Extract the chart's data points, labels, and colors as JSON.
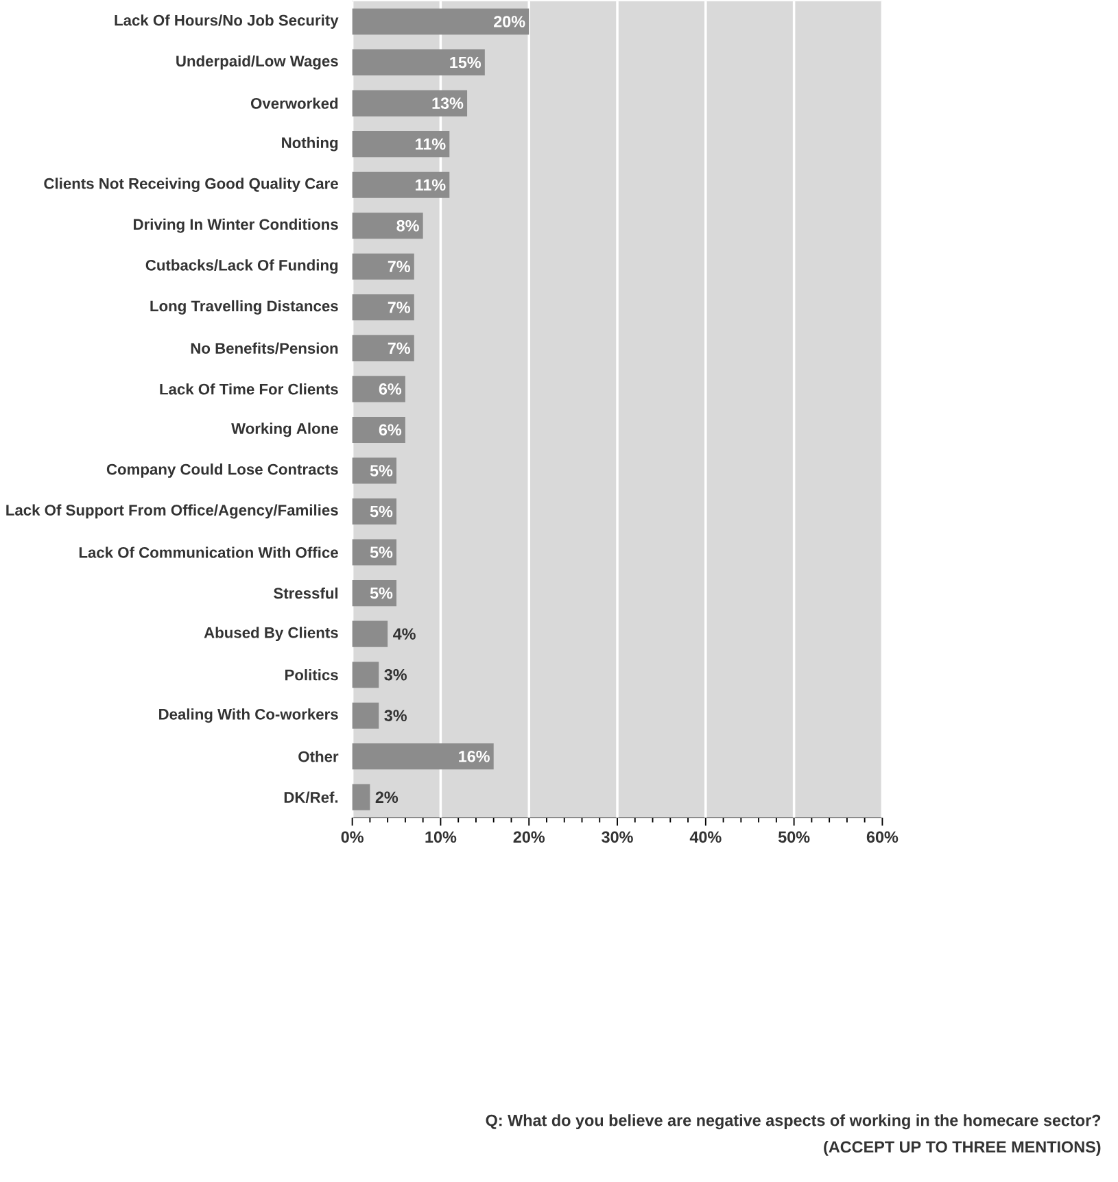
{
  "chart_data": {
    "type": "bar",
    "orientation": "horizontal",
    "categories": [
      "Lack Of Hours/No Job Security",
      "Underpaid/Low Wages",
      "Overworked",
      "Nothing",
      "Clients Not Receiving Good Quality Care",
      "Driving In Winter Conditions",
      "Cutbacks/Lack Of Funding",
      "Long Travelling Distances",
      "No Benefits/Pension",
      "Lack Of Time For Clients",
      "Working Alone",
      "Company Could Lose Contracts",
      "Lack Of Support From Office/Agency/Families",
      "Lack Of Communication With Office",
      "Stressful",
      "Abused By Clients",
      "Politics",
      "Dealing With Co-workers",
      "Other",
      "DK/Ref."
    ],
    "values": [
      20,
      15,
      13,
      11,
      11,
      8,
      7,
      7,
      7,
      6,
      6,
      5,
      5,
      5,
      5,
      4,
      3,
      3,
      16,
      2
    ],
    "value_labels": [
      "20%",
      "15%",
      "13%",
      "11%",
      "11%",
      "8%",
      "7%",
      "7%",
      "7%",
      "6%",
      "6%",
      "5%",
      "5%",
      "5%",
      "5%",
      "4%",
      "3%",
      "3%",
      "16%",
      "2%"
    ],
    "color": "#8c8c8c",
    "xlim": [
      0,
      60
    ],
    "xticks": [
      {
        "value": 0,
        "label": "0%"
      },
      {
        "value": 10,
        "label": "10%"
      },
      {
        "value": 20,
        "label": "20%"
      },
      {
        "value": 30,
        "label": "30%"
      },
      {
        "value": 40,
        "label": "40%"
      },
      {
        "value": 50,
        "label": "50%"
      },
      {
        "value": 60,
        "label": "60%"
      }
    ],
    "grid": "x",
    "annotations": [
      "Q:  What do you believe are negative aspects of working in the homecare sector?",
      "(ACCEPT UP TO THREE MENTIONS)"
    ]
  }
}
